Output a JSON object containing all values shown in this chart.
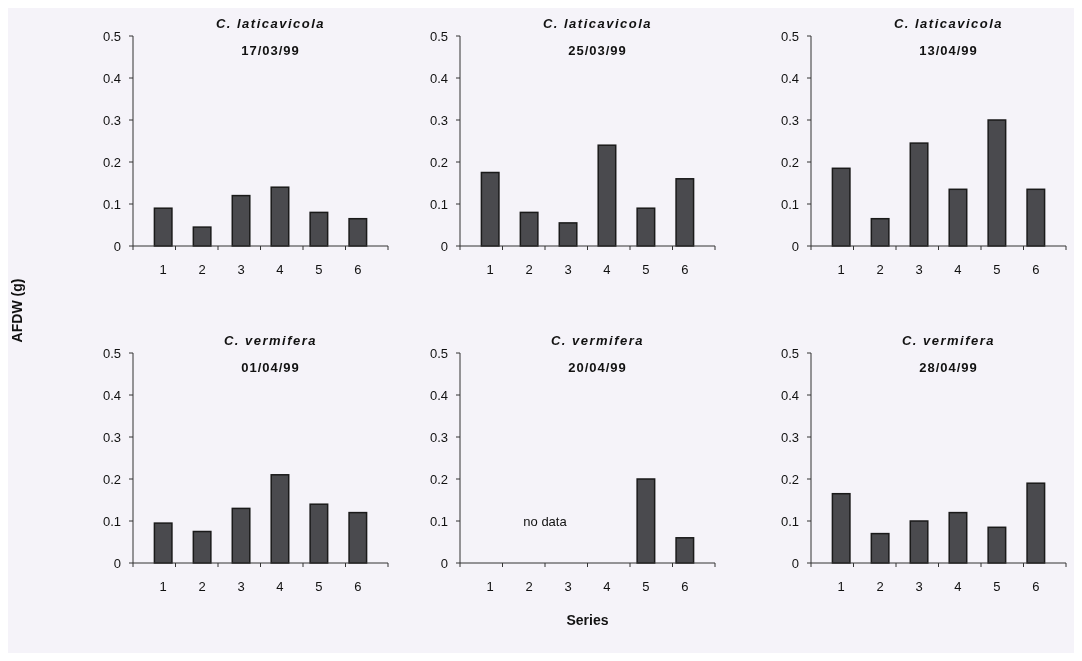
{
  "chart_data": [
    {
      "type": "bar",
      "title": "C. laticavicola",
      "subtitle": "17/03/99",
      "ylabel": "AFDW (g)",
      "categories": [
        "1",
        "2",
        "3",
        "4",
        "5",
        "6"
      ],
      "values": [
        0.09,
        0.045,
        0.12,
        0.14,
        0.08,
        0.065
      ],
      "color": "#4a4a4e",
      "ylim": [
        0,
        0.5
      ],
      "yticks": [
        0,
        0.1,
        0.2,
        0.3,
        0.4,
        0.5
      ],
      "grid": false
    },
    {
      "type": "bar",
      "title": "C. laticavicola",
      "subtitle": "25/03/99",
      "categories": [
        "1",
        "2",
        "3",
        "4",
        "5",
        "6"
      ],
      "values": [
        0.175,
        0.08,
        0.055,
        0.24,
        0.09,
        0.16
      ],
      "color": "#4a4a4e",
      "ylim": [
        0,
        0.5
      ],
      "yticks": [
        0,
        0.1,
        0.2,
        0.3,
        0.4,
        0.5
      ],
      "grid": false
    },
    {
      "type": "bar",
      "title": "C. laticavicola",
      "subtitle": "13/04/99",
      "categories": [
        "1",
        "2",
        "3",
        "4",
        "5",
        "6"
      ],
      "values": [
        0.185,
        0.065,
        0.245,
        0.135,
        0.3,
        0.135
      ],
      "color": "#4a4a4e",
      "ylim": [
        0,
        0.5
      ],
      "yticks": [
        0,
        0.1,
        0.2,
        0.3,
        0.4,
        0.5
      ],
      "grid": false
    },
    {
      "type": "bar",
      "title": "C. vermifera",
      "subtitle": "01/04/99",
      "categories": [
        "1",
        "2",
        "3",
        "4",
        "5",
        "6"
      ],
      "values": [
        0.095,
        0.075,
        0.13,
        0.21,
        0.14,
        0.12
      ],
      "color": "#4a4a4e",
      "ylim": [
        0,
        0.5
      ],
      "yticks": [
        0,
        0.1,
        0.2,
        0.3,
        0.4,
        0.5
      ],
      "grid": false
    },
    {
      "type": "bar",
      "title": "C. vermifera",
      "subtitle": "20/04/99",
      "xlabel": "Series",
      "categories": [
        "1",
        "2",
        "3",
        "4",
        "5",
        "6"
      ],
      "values": [
        null,
        null,
        null,
        null,
        0.2,
        0.06
      ],
      "color": "#4a4a4e",
      "ylim": [
        0,
        0.5
      ],
      "yticks": [
        0,
        0.1,
        0.2,
        0.3,
        0.4,
        0.5
      ],
      "grid": false,
      "annotations": [
        "no data"
      ]
    },
    {
      "type": "bar",
      "title": "C. vermifera",
      "subtitle": "28/04/99",
      "categories": [
        "1",
        "2",
        "3",
        "4",
        "5",
        "6"
      ],
      "values": [
        0.165,
        0.07,
        0.1,
        0.12,
        0.085,
        0.19
      ],
      "color": "#4a4a4e",
      "ylim": [
        0,
        0.5
      ],
      "yticks": [
        0,
        0.1,
        0.2,
        0.3,
        0.4,
        0.5
      ],
      "grid": false
    }
  ]
}
